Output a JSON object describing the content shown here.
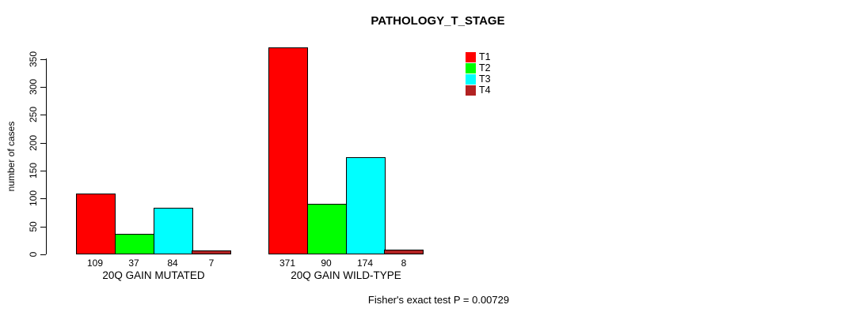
{
  "title": "PATHOLOGY_T_STAGE",
  "footer": "Fisher's exact test P = 0.00729",
  "chart_data": {
    "type": "bar",
    "title": "PATHOLOGY_T_STAGE",
    "xlabel": "",
    "ylabel": "number of cases",
    "ylim": [
      0,
      350
    ],
    "yticks": [
      "0",
      "50",
      "100",
      "150",
      "200",
      "250",
      "300",
      "350"
    ],
    "grid": false,
    "legend_position": "right",
    "series": [
      {
        "name": "T1",
        "color": "#FF0000"
      },
      {
        "name": "T2",
        "color": "#00FF00"
      },
      {
        "name": "T3",
        "color": "#00FFFF"
      },
      {
        "name": "T4",
        "color": "#B22222"
      }
    ],
    "categories": [
      "20Q GAIN MUTATED",
      "20Q GAIN WILD-TYPE"
    ],
    "groups": [
      {
        "label": "20Q GAIN MUTATED",
        "values": [
          109,
          37,
          84,
          7
        ]
      },
      {
        "label": "20Q GAIN WILD-TYPE",
        "values": [
          371,
          90,
          174,
          8
        ]
      }
    ],
    "annotation": "Fisher's exact test P = 0.00729"
  }
}
